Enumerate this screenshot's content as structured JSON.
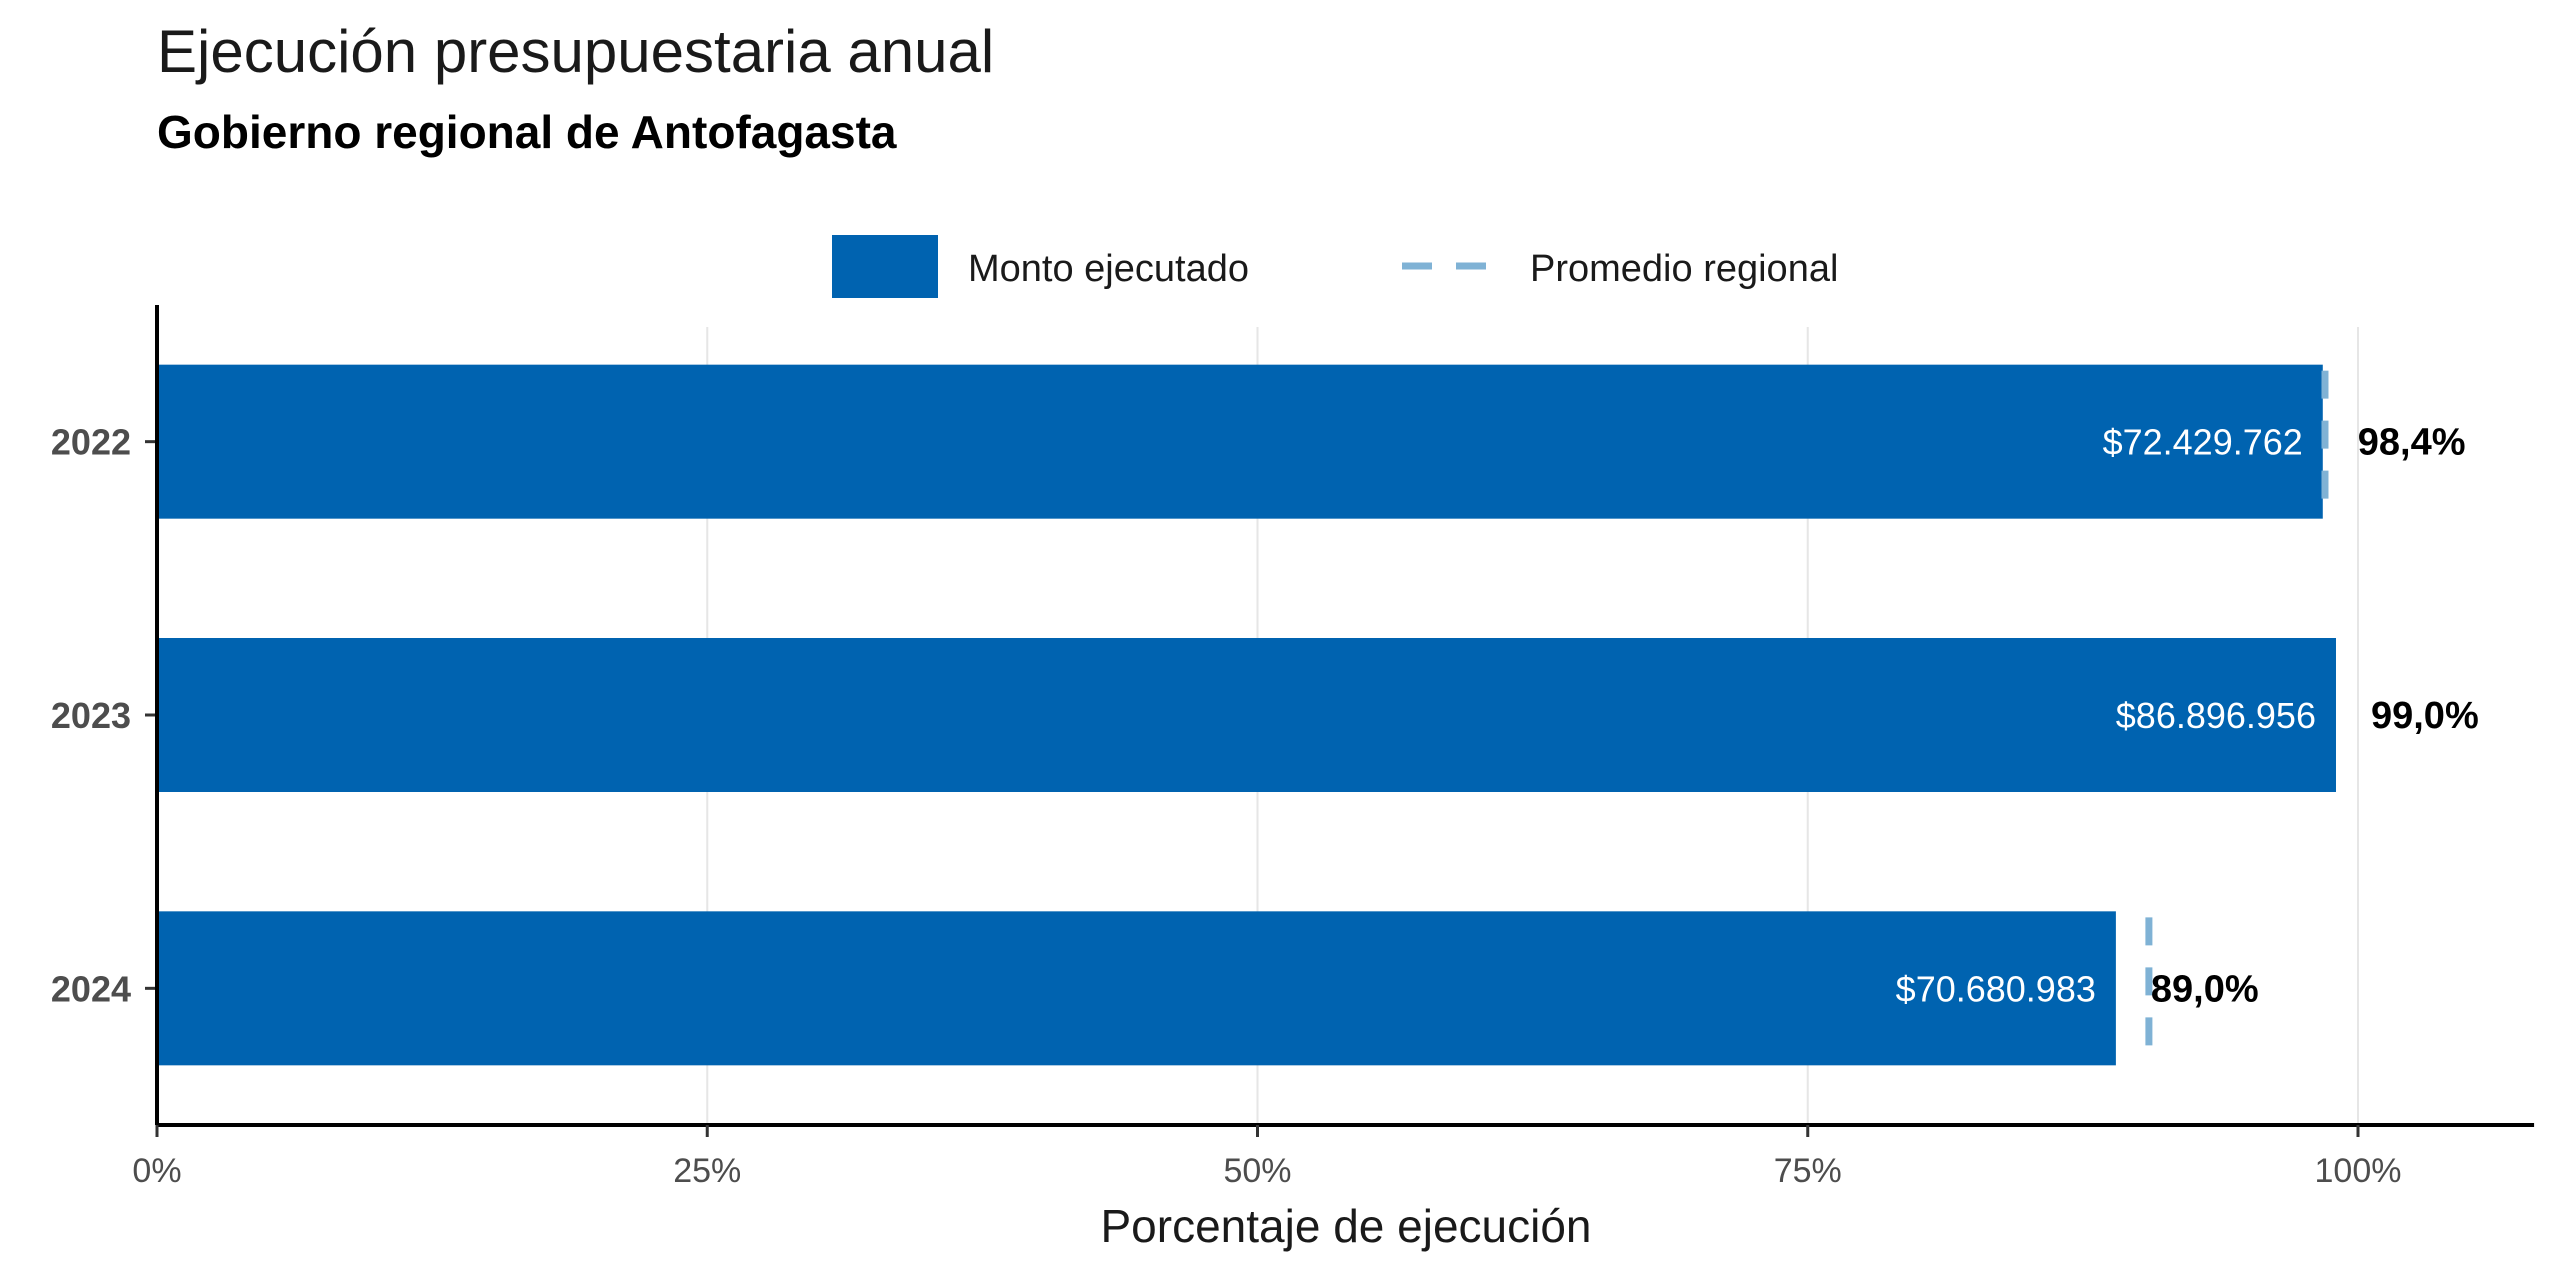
{
  "chart_data": {
    "type": "bar",
    "orientation": "horizontal",
    "title": "Ejecución presupuestaria anual",
    "subtitle": "Gobierno regional de Antofagasta",
    "xlabel": "Porcentaje de ejecución",
    "ylabel": "",
    "xlim": [
      0,
      108
    ],
    "xticks": [
      0,
      25,
      50,
      75,
      100
    ],
    "xtick_labels": [
      "0%",
      "25%",
      "50%",
      "75%",
      "100%"
    ],
    "grid": "vertical-major",
    "legend_position": "top",
    "legend": [
      {
        "label": "Monto ejecutado",
        "kind": "box",
        "color": "#0063B0"
      },
      {
        "label": "Promedio regional",
        "kind": "dashed-line",
        "color": "#7FB2D5"
      }
    ],
    "categories": [
      "2022",
      "2023",
      "2024"
    ],
    "series": [
      {
        "name": "Monto ejecutado",
        "color": "#0063B0",
        "values": [
          98.4,
          99.0,
          89.0
        ],
        "amount_labels": [
          "$72.429.762",
          "$86.896.956",
          "$70.680.983"
        ],
        "pct_labels": [
          "98,4%",
          "99,0%",
          "89,0%"
        ]
      },
      {
        "name": "Promedio regional",
        "color": "#7FB2D5",
        "style": "dashed-line",
        "values": [
          98.5,
          null,
          90.5
        ]
      }
    ]
  }
}
